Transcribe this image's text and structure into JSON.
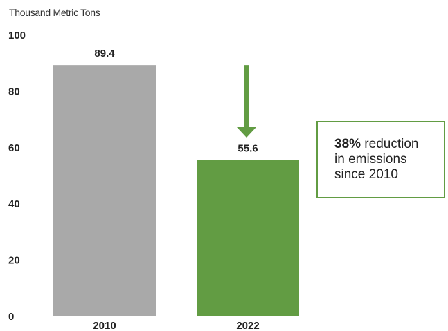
{
  "chart_data": {
    "type": "bar",
    "title": "",
    "ylabel": "Thousand Metric Tons",
    "xlabel": "",
    "categories": [
      "2010",
      "2022"
    ],
    "values": [
      89.4,
      55.6
    ],
    "value_labels": [
      "89.4",
      "55.6"
    ],
    "bar_colors": [
      "#a9a9a9",
      "#629c43"
    ],
    "ylim": [
      0,
      100
    ],
    "yticks": [
      0,
      20,
      40,
      60,
      80,
      100
    ],
    "grid": false,
    "legend": "none",
    "annotation": {
      "type": "arrow-down",
      "color": "#629c43",
      "from_value": 89.4,
      "to_value": 55.6
    }
  },
  "callout": {
    "percent": "38%",
    "line1_rest": " reduction",
    "line2": "in emissions",
    "line3": "since 2010",
    "border_color": "#629c43"
  }
}
